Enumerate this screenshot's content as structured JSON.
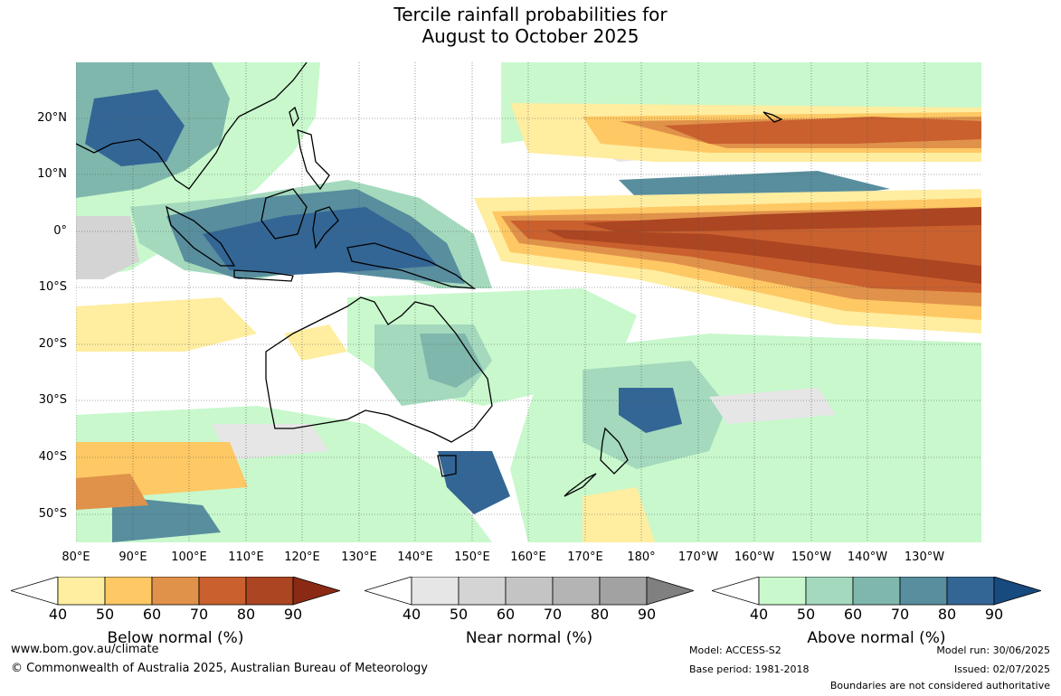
{
  "title_line1": "Tercile rainfall probabilities for",
  "title_line2": "August to October 2025",
  "lat_labels": [
    "20°N",
    "10°N",
    "0°",
    "10°S",
    "20°S",
    "30°S",
    "40°S",
    "50°S"
  ],
  "lon_labels": [
    "80°E",
    "90°E",
    "100°E",
    "110°E",
    "120°E",
    "130°E",
    "140°E",
    "150°E",
    "160°E",
    "170°E",
    "180°",
    "170°W",
    "160°W",
    "150°W",
    "140°W",
    "130°W"
  ],
  "colorbars": [
    {
      "caption": "Below normal (%)",
      "ticks": [
        "40",
        "50",
        "60",
        "70",
        "80",
        "90"
      ],
      "colors": [
        "#ffeda0",
        "#fec864",
        "#e0924a",
        "#c9602e",
        "#ab4522",
        "#8b2a14"
      ]
    },
    {
      "caption": "Near normal (%)",
      "ticks": [
        "40",
        "50",
        "60",
        "70",
        "80",
        "90"
      ],
      "colors": [
        "#e6e6e6",
        "#d4d4d4",
        "#c4c4c4",
        "#b4b4b4",
        "#a2a2a2",
        "#808080"
      ]
    },
    {
      "caption": "Above normal (%)",
      "ticks": [
        "40",
        "50",
        "60",
        "70",
        "80",
        "90"
      ],
      "colors": [
        "#c8f8cc",
        "#a4d9bd",
        "#7fb7ac",
        "#588e9e",
        "#336695",
        "#174a7e"
      ]
    }
  ],
  "footer": {
    "url": "www.bom.gov.au/climate",
    "copyright": "© Commonwealth of Australia 2025, Australian Bureau of Meteorology",
    "model": "Model: ACCESS-S2",
    "base_period": "Base period: 1981-2018",
    "model_run": "Model run: 30/06/2025",
    "issued": "Issued: 02/07/2025",
    "disclaimer": "Boundaries are not considered authoritative"
  },
  "map_colors": {
    "land_outline": "#000000",
    "grid": "#555555",
    "background": "#ffffff"
  }
}
